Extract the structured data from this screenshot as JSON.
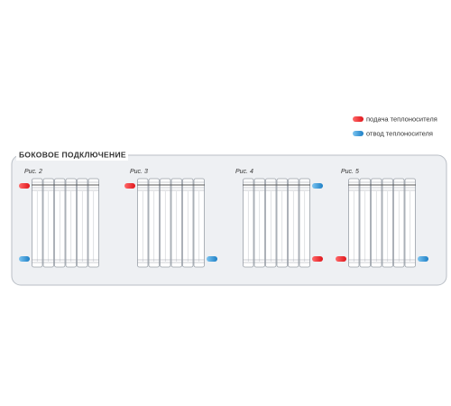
{
  "legend": [
    {
      "label": "подача теплоносителя"
    },
    {
      "label": "отвод теплоносителя"
    }
  ],
  "panel": {
    "title": "БОКОВОЕ ПОДКЛЮЧЕНИЕ"
  },
  "figures": [
    {
      "label": "Рис. 2"
    },
    {
      "label": "Рис. 3"
    },
    {
      "label": "Рис. 4"
    },
    {
      "label": "Рис. 5"
    }
  ]
}
